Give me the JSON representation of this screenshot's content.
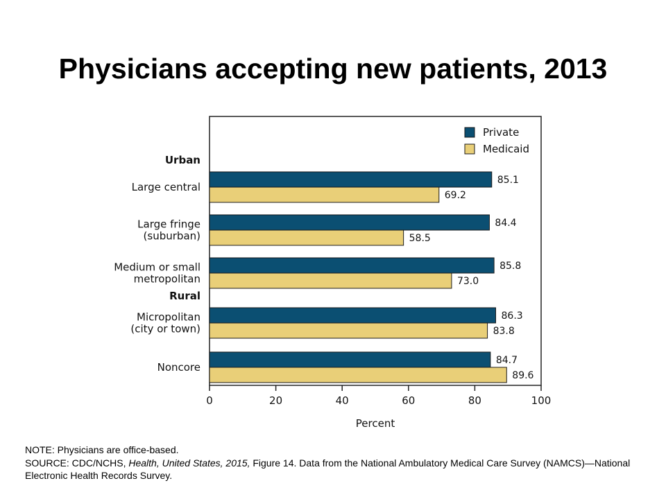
{
  "colors": {
    "private": "#0b4f72",
    "medicaid": "#e9cf78",
    "outline": "#1a1a1a"
  },
  "chart_data": {
    "type": "bar",
    "orientation": "horizontal",
    "title": "Physicians accepting new patients, 2013",
    "xlabel": "Percent",
    "ylabel": "",
    "xlim": [
      0,
      100
    ],
    "x_ticks": [
      0,
      20,
      40,
      60,
      80,
      100
    ],
    "grid": false,
    "legend_position": "top-right",
    "groups": [
      {
        "label": "Urban",
        "categories": [
          0,
          1,
          2
        ]
      },
      {
        "label": "Rural",
        "categories": [
          3,
          4
        ]
      }
    ],
    "categories": [
      [
        "Large central"
      ],
      [
        "Large fringe",
        "(suburban)"
      ],
      [
        "Medium or small",
        "metropolitan"
      ],
      [
        "Micropolitan",
        "(city or town)"
      ],
      [
        "Noncore"
      ]
    ],
    "series": [
      {
        "name": "Private",
        "values": [
          85.1,
          84.4,
          85.8,
          86.3,
          84.7
        ]
      },
      {
        "name": "Medicaid",
        "values": [
          69.2,
          58.5,
          73.0,
          83.8,
          89.6
        ]
      }
    ]
  },
  "notes": {
    "note": "NOTE: Physicians are office-based.",
    "source_prefix": "SOURCE: CDC/NCHS, ",
    "source_italic": "Health, United States, 2015,",
    "source_suffix": " Figure 14. Data from the National Ambulatory Medical Care Survey (NAMCS)—National Electronic Health Records Survey."
  }
}
